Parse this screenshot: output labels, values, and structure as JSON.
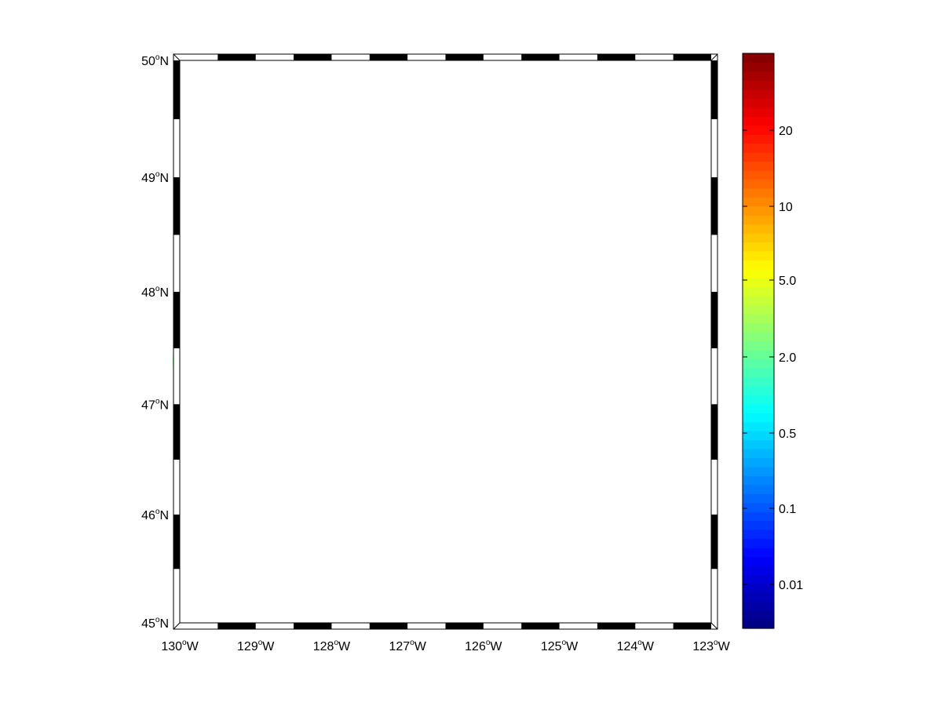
{
  "map": {
    "projection": "mercator",
    "lon_range": [
      -130,
      -123
    ],
    "lat_range": [
      45,
      50
    ],
    "grid": true,
    "colors": {
      "ocean": "#70ff90",
      "ocean_patch": "#82ff80",
      "land": "#808080",
      "coast_gap": "#ffffff"
    },
    "lon_ticks": [
      {
        "deg": "130",
        "hem": "W",
        "value": -130
      },
      {
        "deg": "129",
        "hem": "W",
        "value": -129
      },
      {
        "deg": "128",
        "hem": "W",
        "value": -128
      },
      {
        "deg": "127",
        "hem": "W",
        "value": -127
      },
      {
        "deg": "126",
        "hem": "W",
        "value": -126
      },
      {
        "deg": "125",
        "hem": "W",
        "value": -125
      },
      {
        "deg": "124",
        "hem": "W",
        "value": -124
      },
      {
        "deg": "123",
        "hem": "W",
        "value": -123
      }
    ],
    "lat_ticks": [
      {
        "deg": "50",
        "hem": "N",
        "value": 50
      },
      {
        "deg": "49",
        "hem": "N",
        "value": 49
      },
      {
        "deg": "48",
        "hem": "N",
        "value": 48
      },
      {
        "deg": "47",
        "hem": "N",
        "value": 47
      },
      {
        "deg": "46",
        "hem": "N",
        "value": 46
      },
      {
        "deg": "45",
        "hem": "N",
        "value": 45
      }
    ],
    "degree_symbol": "o"
  },
  "colorbar": {
    "colormap": "jet",
    "scale": "log",
    "ticks": [
      "20",
      "10",
      "5.0",
      "2.0",
      "0.5",
      "0.1",
      "0.01"
    ]
  }
}
